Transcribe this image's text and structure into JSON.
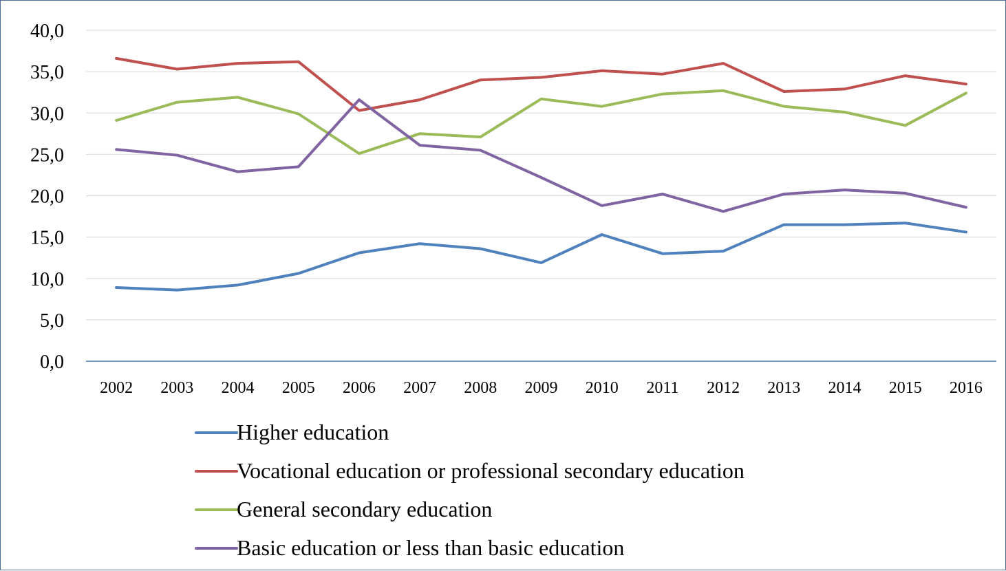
{
  "chart_data": {
    "type": "line",
    "title": "",
    "xlabel": "",
    "ylabel": "",
    "x": [
      "2002",
      "2003",
      "2004",
      "2005",
      "2006",
      "2007",
      "2008",
      "2009",
      "2010",
      "2011",
      "2012",
      "2013",
      "2014",
      "2015",
      "2016"
    ],
    "ylim": [
      0,
      40
    ],
    "y_ticks": [
      "0,0",
      "5,0",
      "10,0",
      "15,0",
      "20,0",
      "25,0",
      "30,0",
      "35,0",
      "40,0"
    ],
    "grid": true,
    "legend_position": "bottom",
    "series": [
      {
        "name": "Higher education",
        "color": "#4f81bd",
        "values": [
          8.9,
          8.6,
          9.2,
          10.6,
          13.1,
          14.2,
          13.6,
          11.9,
          15.3,
          13.0,
          13.3,
          16.5,
          16.5,
          16.7,
          15.6
        ]
      },
      {
        "name": "Vocational education or professional secondary education",
        "color": "#c0504d",
        "values": [
          36.6,
          35.3,
          36.0,
          36.2,
          30.3,
          31.6,
          34.0,
          34.3,
          35.1,
          34.7,
          36.0,
          32.6,
          32.9,
          34.5,
          33.5
        ]
      },
      {
        "name": "General secondary education",
        "color": "#9bbb59",
        "values": [
          29.1,
          31.3,
          31.9,
          29.9,
          25.1,
          27.5,
          27.1,
          31.7,
          30.8,
          32.3,
          32.7,
          30.8,
          30.1,
          28.5,
          32.4
        ]
      },
      {
        "name": "Basic education or less than basic education",
        "color": "#8064a2",
        "values": [
          25.6,
          24.9,
          22.9,
          23.5,
          31.6,
          26.1,
          25.5,
          22.2,
          18.8,
          20.2,
          18.1,
          20.2,
          20.7,
          20.3,
          18.6
        ]
      }
    ]
  }
}
